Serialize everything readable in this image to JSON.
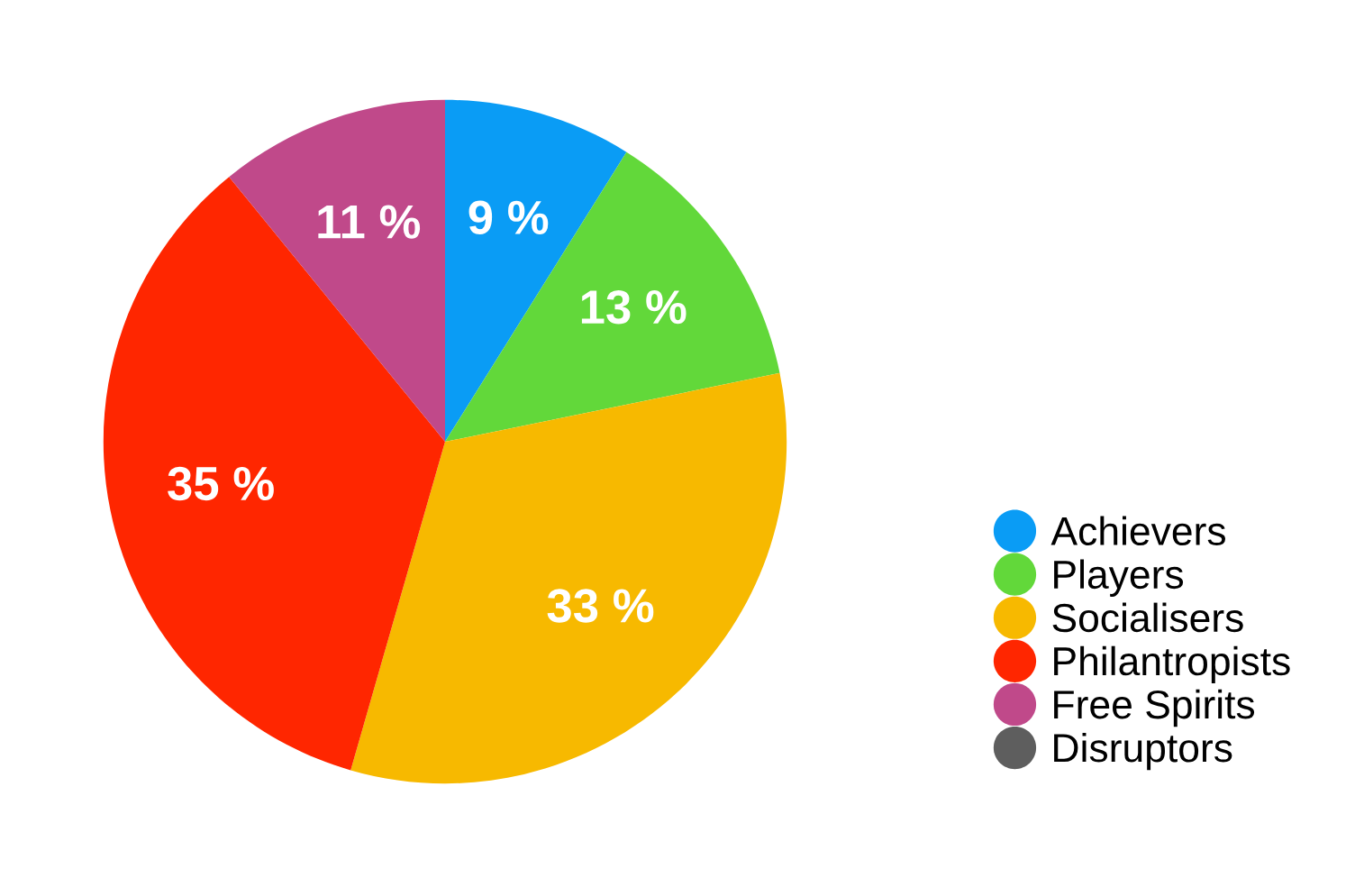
{
  "chart_data": {
    "type": "pie",
    "categories": [
      "Achievers",
      "Players",
      "Socialisers",
      "Philantropists",
      "Free Spirits",
      "Disruptors"
    ],
    "values": [
      9,
      13,
      33,
      35,
      11,
      0
    ],
    "colors": [
      "#0a9cf5",
      "#62d83a",
      "#f7b900",
      "#ff2600",
      "#c0498a",
      "#5e5e5e"
    ],
    "value_labels": [
      "9 %",
      "13 %",
      "33 %",
      "35 %",
      "11 %",
      null
    ],
    "legend": "right"
  }
}
